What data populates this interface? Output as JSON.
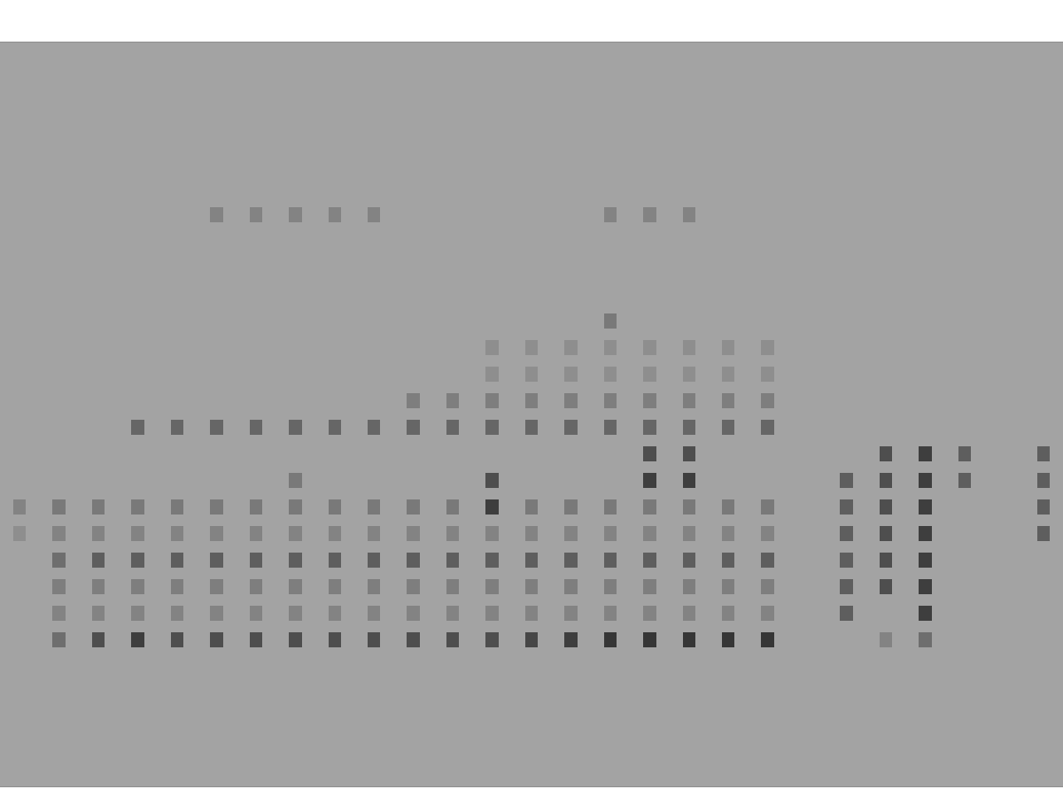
{
  "chart_data": {
    "type": "heatmap",
    "x": [
      0,
      1,
      2,
      3,
      4,
      5,
      6,
      7,
      8,
      9,
      10,
      11,
      12,
      13,
      14,
      15,
      16,
      17,
      18,
      19,
      20,
      21,
      22,
      23,
      24,
      25,
      26
    ],
    "y": [
      0,
      1,
      2,
      3,
      4,
      5,
      6,
      7,
      8,
      9,
      10,
      11,
      12,
      13,
      14,
      15,
      16,
      17,
      18,
      19,
      20,
      21,
      22,
      23,
      24,
      25,
      26,
      27
    ],
    "z": [
      [
        0,
        0,
        0,
        0,
        0,
        0,
        0,
        0,
        0,
        0,
        0,
        0,
        0,
        0,
        0,
        0,
        0,
        0,
        0,
        0,
        0,
        0,
        0,
        0,
        0,
        0,
        0
      ],
      [
        0,
        0,
        0,
        0,
        0,
        0,
        0,
        0,
        0,
        0,
        0,
        0,
        0,
        0,
        0,
        0,
        0,
        0,
        0,
        0,
        0,
        0,
        0,
        0,
        0,
        0,
        0
      ],
      [
        0,
        0,
        0,
        0,
        0,
        0,
        0,
        0,
        0,
        0,
        0,
        0,
        0,
        0,
        0,
        0,
        0,
        0,
        0,
        0,
        0,
        0,
        0,
        0,
        0,
        0,
        0
      ],
      [
        0,
        0,
        0,
        0,
        0,
        0,
        0,
        0,
        0,
        0,
        0,
        0,
        0,
        0,
        0,
        0,
        0,
        0,
        0,
        0,
        0,
        0,
        0,
        0,
        0,
        0,
        0
      ],
      [
        0,
        0,
        0,
        0,
        0,
        0,
        0,
        0,
        0,
        0,
        0,
        0,
        0,
        0,
        0,
        0,
        0,
        0,
        0,
        0,
        0,
        0,
        0,
        0,
        0,
        0,
        0
      ],
      [
        0,
        0.5,
        0.7,
        0.8,
        0.7,
        0.7,
        0.7,
        0.7,
        0.7,
        0.7,
        0.7,
        0.7,
        0.7,
        0.75,
        0.8,
        0.85,
        0.85,
        0.85,
        0.85,
        0.85,
        0,
        0,
        0.3,
        0.5,
        0,
        0,
        0
      ],
      [
        0,
        0.3,
        0.3,
        0.3,
        0.3,
        0.3,
        0.3,
        0.3,
        0.3,
        0.3,
        0.3,
        0.3,
        0.3,
        0.3,
        0.3,
        0.3,
        0.3,
        0.3,
        0.3,
        0.3,
        0,
        0.6,
        0,
        0.8,
        0,
        0,
        0
      ],
      [
        0,
        0.35,
        0.35,
        0.35,
        0.35,
        0.35,
        0.35,
        0.35,
        0.35,
        0.35,
        0.35,
        0.35,
        0.35,
        0.35,
        0.35,
        0.35,
        0.35,
        0.35,
        0.35,
        0.35,
        0,
        0.6,
        0.7,
        0.8,
        0,
        0,
        0
      ],
      [
        0,
        0.5,
        0.6,
        0.6,
        0.6,
        0.6,
        0.6,
        0.6,
        0.6,
        0.6,
        0.6,
        0.6,
        0.6,
        0.6,
        0.6,
        0.6,
        0.6,
        0.6,
        0.6,
        0.6,
        0,
        0.6,
        0.7,
        0.8,
        0,
        0,
        0
      ],
      [
        0.2,
        0.3,
        0.3,
        0.3,
        0.3,
        0.3,
        0.3,
        0.3,
        0.3,
        0.3,
        0.3,
        0.3,
        0.3,
        0.3,
        0.3,
        0.3,
        0.3,
        0.3,
        0.3,
        0.3,
        0,
        0.6,
        0.7,
        0.8,
        0,
        0,
        0.6
      ],
      [
        0.3,
        0.4,
        0.4,
        0.4,
        0.4,
        0.4,
        0.4,
        0.4,
        0.4,
        0.4,
        0.4,
        0.4,
        0.8,
        0.4,
        0.4,
        0.4,
        0.4,
        0.4,
        0.4,
        0.4,
        0,
        0.6,
        0.7,
        0.8,
        0,
        0,
        0.6
      ],
      [
        0,
        0,
        0,
        0,
        0,
        0,
        0,
        0.4,
        0,
        0,
        0,
        0,
        0.7,
        0,
        0,
        0,
        0.8,
        0.8,
        0,
        0,
        0,
        0.6,
        0.7,
        0.8,
        0.6,
        0,
        0.6
      ],
      [
        0,
        0,
        0,
        0,
        0,
        0,
        0,
        0,
        0,
        0,
        0,
        0,
        0,
        0,
        0,
        0,
        0.7,
        0.7,
        0,
        0,
        0,
        0,
        0.7,
        0.8,
        0.6,
        0,
        0.6
      ],
      [
        0,
        0,
        0,
        0.55,
        0.55,
        0.55,
        0.55,
        0.55,
        0.55,
        0.55,
        0.55,
        0.55,
        0.55,
        0.55,
        0.55,
        0.55,
        0.55,
        0.55,
        0.55,
        0.55,
        0,
        0,
        0,
        0,
        0,
        0,
        0
      ],
      [
        0,
        0,
        0,
        0,
        0,
        0,
        0,
        0,
        0,
        0,
        0.35,
        0.35,
        0.35,
        0.35,
        0.35,
        0.35,
        0.35,
        0.35,
        0.35,
        0.35,
        0,
        0,
        0,
        0,
        0,
        0,
        0
      ],
      [
        0,
        0,
        0,
        0,
        0,
        0,
        0,
        0,
        0,
        0,
        0,
        0,
        0.2,
        0.2,
        0.2,
        0.2,
        0.2,
        0.2,
        0.2,
        0.2,
        0,
        0,
        0,
        0,
        0,
        0,
        0
      ],
      [
        0,
        0,
        0,
        0,
        0,
        0,
        0,
        0,
        0,
        0,
        0,
        0,
        0.2,
        0.2,
        0.2,
        0.2,
        0.2,
        0.2,
        0.2,
        0.2,
        0,
        0,
        0,
        0,
        0,
        0,
        0
      ],
      [
        0,
        0,
        0,
        0,
        0,
        0,
        0,
        0,
        0,
        0,
        0,
        0,
        0,
        0,
        0,
        0.4,
        0,
        0,
        0,
        0,
        0,
        0,
        0,
        0,
        0,
        0,
        0
      ],
      [
        0,
        0,
        0,
        0,
        0,
        0,
        0,
        0,
        0,
        0,
        0,
        0,
        0,
        0,
        0,
        0,
        0,
        0,
        0,
        0,
        0,
        0,
        0,
        0,
        0,
        0,
        0
      ],
      [
        0,
        0,
        0,
        0,
        0,
        0,
        0,
        0,
        0,
        0,
        0,
        0,
        0,
        0,
        0,
        0,
        0,
        0,
        0,
        0,
        0,
        0,
        0,
        0,
        0,
        0,
        0
      ],
      [
        0,
        0,
        0,
        0,
        0,
        0,
        0,
        0,
        0,
        0,
        0,
        0,
        0,
        0,
        0,
        0,
        0,
        0,
        0,
        0,
        0,
        0,
        0,
        0,
        0,
        0,
        0
      ],
      [
        0,
        0,
        0,
        0,
        0,
        0.3,
        0.3,
        0.3,
        0.3,
        0.3,
        0,
        0,
        0,
        0,
        0,
        0.3,
        0.3,
        0.3,
        0,
        0,
        0,
        0,
        0,
        0,
        0,
        0,
        0
      ],
      [
        0,
        0,
        0,
        0,
        0,
        0,
        0,
        0,
        0,
        0,
        0,
        0,
        0,
        0,
        0,
        0,
        0,
        0,
        0,
        0,
        0,
        0,
        0,
        0,
        0,
        0,
        0
      ],
      [
        0,
        0,
        0,
        0,
        0,
        0,
        0,
        0,
        0,
        0,
        0,
        0,
        0,
        0,
        0,
        0,
        0,
        0,
        0,
        0,
        0,
        0,
        0,
        0,
        0,
        0,
        0
      ],
      [
        0,
        0,
        0,
        0,
        0,
        0,
        0,
        0,
        0,
        0,
        0,
        0,
        0,
        0,
        0,
        0,
        0,
        0,
        0,
        0,
        0,
        0,
        0,
        0,
        0,
        0,
        0
      ],
      [
        0,
        0,
        0,
        0,
        0,
        0,
        0,
        0,
        0,
        0,
        0,
        0,
        0,
        0,
        0,
        0,
        0,
        0,
        0,
        0,
        0,
        0,
        0,
        0,
        0,
        0,
        0
      ],
      [
        0,
        0,
        0,
        0,
        0,
        0,
        0,
        0,
        0,
        0,
        0,
        0,
        0,
        0,
        0,
        0,
        0,
        0,
        0,
        0,
        0,
        0,
        0,
        0,
        0,
        0,
        0
      ],
      [
        0,
        0,
        0,
        0,
        0,
        0,
        0,
        0,
        0,
        0,
        0,
        0,
        0,
        0,
        0,
        0,
        0,
        0,
        0,
        0,
        0,
        0,
        0,
        0,
        0,
        0,
        0
      ]
    ],
    "zlim": [
      0,
      1
    ],
    "xlim": [
      -0.5,
      26.5
    ],
    "ylim": [
      -0.5,
      27.5
    ],
    "tick_labels": false,
    "grid": false
  }
}
